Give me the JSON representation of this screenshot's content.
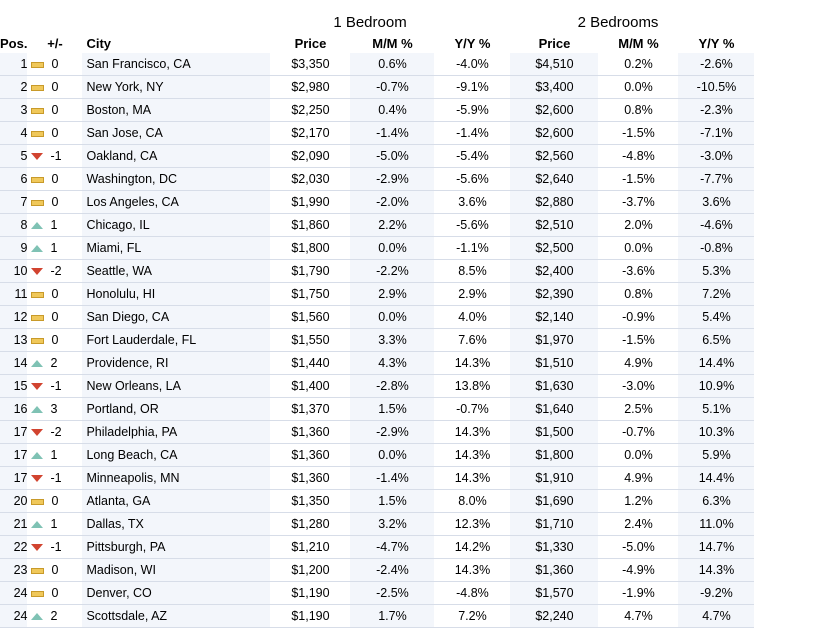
{
  "group_headers": {
    "one_bedroom": "1 Bedroom",
    "two_bedrooms": "2 Bedrooms"
  },
  "columns": {
    "pos": "Pos.",
    "change": "+/-",
    "city": "City",
    "price1": "Price",
    "mm1": "M/M %",
    "yy1": "Y/Y %",
    "price2": "Price",
    "mm2": "M/M %",
    "yy2": "Y/Y %"
  },
  "colors": {
    "up": "#7fc2b4",
    "down": "#d1432f",
    "same": "#f0c85a",
    "shade": "#f3f6fb"
  },
  "rows": [
    {
      "pos": "1",
      "trend": "same",
      "change": "0",
      "city": "San Francisco, CA",
      "price1": "$3,350",
      "mm1": "0.6%",
      "yy1": "-4.0%",
      "price2": "$4,510",
      "mm2": "0.2%",
      "yy2": "-2.6%"
    },
    {
      "pos": "2",
      "trend": "same",
      "change": "0",
      "city": "New York, NY",
      "price1": "$2,980",
      "mm1": "-0.7%",
      "yy1": "-9.1%",
      "price2": "$3,400",
      "mm2": "0.0%",
      "yy2": "-10.5%"
    },
    {
      "pos": "3",
      "trend": "same",
      "change": "0",
      "city": "Boston, MA",
      "price1": "$2,250",
      "mm1": "0.4%",
      "yy1": "-5.9%",
      "price2": "$2,600",
      "mm2": "0.8%",
      "yy2": "-2.3%"
    },
    {
      "pos": "4",
      "trend": "same",
      "change": "0",
      "city": "San Jose, CA",
      "price1": "$2,170",
      "mm1": "-1.4%",
      "yy1": "-1.4%",
      "price2": "$2,600",
      "mm2": "-1.5%",
      "yy2": "-7.1%"
    },
    {
      "pos": "5",
      "trend": "down",
      "change": "-1",
      "city": "Oakland, CA",
      "price1": "$2,090",
      "mm1": "-5.0%",
      "yy1": "-5.4%",
      "price2": "$2,560",
      "mm2": "-4.8%",
      "yy2": "-3.0%"
    },
    {
      "pos": "6",
      "trend": "same",
      "change": "0",
      "city": "Washington, DC",
      "price1": "$2,030",
      "mm1": "-2.9%",
      "yy1": "-5.6%",
      "price2": "$2,640",
      "mm2": "-1.5%",
      "yy2": "-7.7%"
    },
    {
      "pos": "7",
      "trend": "same",
      "change": "0",
      "city": "Los Angeles, CA",
      "price1": "$1,990",
      "mm1": "-2.0%",
      "yy1": "3.6%",
      "price2": "$2,880",
      "mm2": "-3.7%",
      "yy2": "3.6%"
    },
    {
      "pos": "8",
      "trend": "up",
      "change": "1",
      "city": "Chicago, IL",
      "price1": "$1,860",
      "mm1": "2.2%",
      "yy1": "-5.6%",
      "price2": "$2,510",
      "mm2": "2.0%",
      "yy2": "-4.6%"
    },
    {
      "pos": "9",
      "trend": "up",
      "change": "1",
      "city": "Miami, FL",
      "price1": "$1,800",
      "mm1": "0.0%",
      "yy1": "-1.1%",
      "price2": "$2,500",
      "mm2": "0.0%",
      "yy2": "-0.8%"
    },
    {
      "pos": "10",
      "trend": "down",
      "change": "-2",
      "city": "Seattle, WA",
      "price1": "$1,790",
      "mm1": "-2.2%",
      "yy1": "8.5%",
      "price2": "$2,400",
      "mm2": "-3.6%",
      "yy2": "5.3%"
    },
    {
      "pos": "11",
      "trend": "same",
      "change": "0",
      "city": "Honolulu, HI",
      "price1": "$1,750",
      "mm1": "2.9%",
      "yy1": "2.9%",
      "price2": "$2,390",
      "mm2": "0.8%",
      "yy2": "7.2%"
    },
    {
      "pos": "12",
      "trend": "same",
      "change": "0",
      "city": "San Diego, CA",
      "price1": "$1,560",
      "mm1": "0.0%",
      "yy1": "4.0%",
      "price2": "$2,140",
      "mm2": "-0.9%",
      "yy2": "5.4%"
    },
    {
      "pos": "13",
      "trend": "same",
      "change": "0",
      "city": "Fort Lauderdale, FL",
      "price1": "$1,550",
      "mm1": "3.3%",
      "yy1": "7.6%",
      "price2": "$1,970",
      "mm2": "-1.5%",
      "yy2": "6.5%"
    },
    {
      "pos": "14",
      "trend": "up",
      "change": "2",
      "city": "Providence, RI",
      "price1": "$1,440",
      "mm1": "4.3%",
      "yy1": "14.3%",
      "price2": "$1,510",
      "mm2": "4.9%",
      "yy2": "14.4%"
    },
    {
      "pos": "15",
      "trend": "down",
      "change": "-1",
      "city": "New Orleans, LA",
      "price1": "$1,400",
      "mm1": "-2.8%",
      "yy1": "13.8%",
      "price2": "$1,630",
      "mm2": "-3.0%",
      "yy2": "10.9%"
    },
    {
      "pos": "16",
      "trend": "up",
      "change": "3",
      "city": "Portland, OR",
      "price1": "$1,370",
      "mm1": "1.5%",
      "yy1": "-0.7%",
      "price2": "$1,640",
      "mm2": "2.5%",
      "yy2": "5.1%"
    },
    {
      "pos": "17",
      "trend": "down",
      "change": "-2",
      "city": "Philadelphia, PA",
      "price1": "$1,360",
      "mm1": "-2.9%",
      "yy1": "14.3%",
      "price2": "$1,500",
      "mm2": "-0.7%",
      "yy2": "10.3%"
    },
    {
      "pos": "17",
      "trend": "up",
      "change": "1",
      "city": "Long Beach, CA",
      "price1": "$1,360",
      "mm1": "0.0%",
      "yy1": "14.3%",
      "price2": "$1,800",
      "mm2": "0.0%",
      "yy2": "5.9%"
    },
    {
      "pos": "17",
      "trend": "down",
      "change": "-1",
      "city": "Minneapolis, MN",
      "price1": "$1,360",
      "mm1": "-1.4%",
      "yy1": "14.3%",
      "price2": "$1,910",
      "mm2": "4.9%",
      "yy2": "14.4%"
    },
    {
      "pos": "20",
      "trend": "same",
      "change": "0",
      "city": "Atlanta, GA",
      "price1": "$1,350",
      "mm1": "1.5%",
      "yy1": "8.0%",
      "price2": "$1,690",
      "mm2": "1.2%",
      "yy2": "6.3%"
    },
    {
      "pos": "21",
      "trend": "up",
      "change": "1",
      "city": "Dallas, TX",
      "price1": "$1,280",
      "mm1": "3.2%",
      "yy1": "12.3%",
      "price2": "$1,710",
      "mm2": "2.4%",
      "yy2": "11.0%"
    },
    {
      "pos": "22",
      "trend": "down",
      "change": "-1",
      "city": "Pittsburgh, PA",
      "price1": "$1,210",
      "mm1": "-4.7%",
      "yy1": "14.2%",
      "price2": "$1,330",
      "mm2": "-5.0%",
      "yy2": "14.7%"
    },
    {
      "pos": "23",
      "trend": "same",
      "change": "0",
      "city": "Madison, WI",
      "price1": "$1,200",
      "mm1": "-2.4%",
      "yy1": "14.3%",
      "price2": "$1,360",
      "mm2": "-4.9%",
      "yy2": "14.3%"
    },
    {
      "pos": "24",
      "trend": "same",
      "change": "0",
      "city": "Denver, CO",
      "price1": "$1,190",
      "mm1": "-2.5%",
      "yy1": "-4.8%",
      "price2": "$1,570",
      "mm2": "-1.9%",
      "yy2": "-9.2%"
    },
    {
      "pos": "24",
      "trend": "up",
      "change": "2",
      "city": "Scottsdale, AZ",
      "price1": "$1,190",
      "mm1": "1.7%",
      "yy1": "7.2%",
      "price2": "$2,240",
      "mm2": "4.7%",
      "yy2": "4.7%"
    }
  ]
}
